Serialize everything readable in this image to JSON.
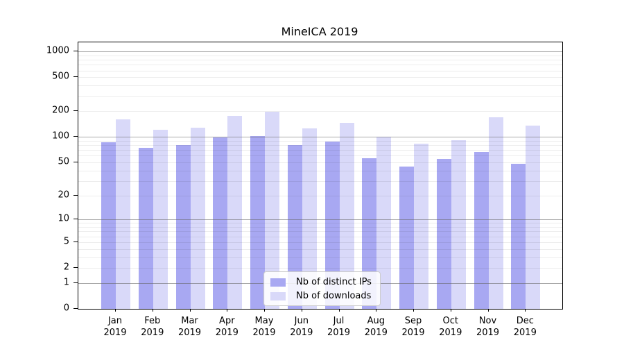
{
  "chart_data": {
    "type": "bar",
    "title": "MineICA 2019",
    "categories": [
      {
        "month": "Jan",
        "year": "2019"
      },
      {
        "month": "Feb",
        "year": "2019"
      },
      {
        "month": "Mar",
        "year": "2019"
      },
      {
        "month": "Apr",
        "year": "2019"
      },
      {
        "month": "May",
        "year": "2019"
      },
      {
        "month": "Jun",
        "year": "2019"
      },
      {
        "month": "Jul",
        "year": "2019"
      },
      {
        "month": "Aug",
        "year": "2019"
      },
      {
        "month": "Sep",
        "year": "2019"
      },
      {
        "month": "Oct",
        "year": "2019"
      },
      {
        "month": "Nov",
        "year": "2019"
      },
      {
        "month": "Dec",
        "year": "2019"
      }
    ],
    "series": [
      {
        "name": "Nb of distinct IPs",
        "color": "#a8a8f2",
        "values": [
          86,
          75,
          81,
          99,
          103,
          80,
          89,
          56,
          45,
          55,
          67,
          48
        ]
      },
      {
        "name": "Nb of downloads",
        "color": "#d9d9f9",
        "values": [
          161,
          122,
          128,
          178,
          197,
          127,
          147,
          100,
          83,
          92,
          170,
          136
        ]
      }
    ],
    "yscale": "log1p",
    "yticks": [
      0,
      1,
      2,
      5,
      10,
      20,
      50,
      100,
      200,
      500,
      1000
    ],
    "ylim": [
      0,
      1280
    ],
    "grid": "horizontal, log minor gridlines",
    "legend_position": "lower center",
    "colors": {
      "major_gridline": "#a0a0a0",
      "minor_gridline": "#ececec",
      "axis_spine": "#000000",
      "background": "#ffffff"
    }
  }
}
